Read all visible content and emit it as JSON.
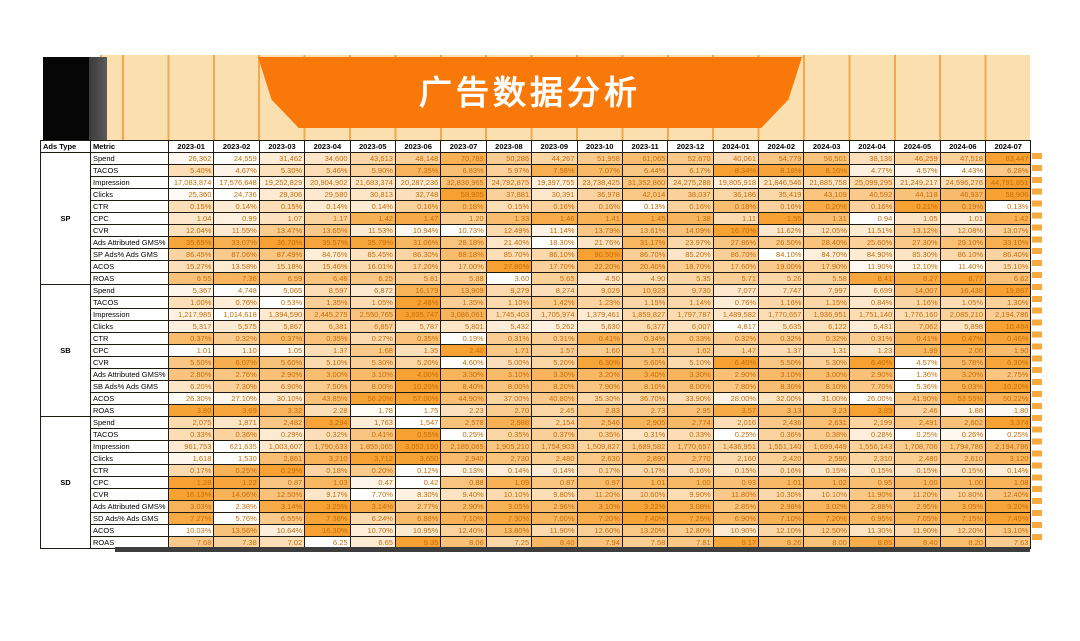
{
  "title": "广告数据分析",
  "colors": {
    "banner": "#f8790a",
    "heat_min": "#ffffff",
    "heat_max": "#f6a132",
    "cell_text": "#c96e07",
    "stripe_bg": "#fcdfae",
    "stripe_line": "#f2a94e"
  },
  "table": {
    "ads_type_header": "Ads Type",
    "metric_header": "Metric",
    "columns": [
      "2023-01",
      "2023-02",
      "2023-03",
      "2023-04",
      "2023-05",
      "2023-06",
      "2023-07",
      "2023-08",
      "2023-09",
      "2023-10",
      "2023-11",
      "2023-12",
      "2024-01",
      "2024-02",
      "2024-03",
      "2024-04",
      "2024-05",
      "2024-06",
      "2024-07"
    ],
    "sections": [
      {
        "ads_type": "SP",
        "metrics": [
          {
            "label": "Spend",
            "format": "int",
            "values": [
              26362,
              24559,
              31462,
              34600,
              43613,
              48148,
              70789,
              50286,
              44267,
              51958,
              61065,
              52670,
              40061,
              54779,
              56501,
              38136,
              46259,
              47518,
              83447
            ]
          },
          {
            "label": "TACOS",
            "format": "pct",
            "values": [
              5.4,
              4.67,
              5.3,
              5.46,
              5.9,
              7.35,
              6.83,
              5.97,
              7.58,
              7.07,
              6.44,
              6.17,
              8.34,
              8.18,
              8.16,
              4.77,
              4.57,
              4.43,
              6.28
            ]
          },
          {
            "label": "Impression",
            "format": "int",
            "values": [
              17083874,
              17576648,
              19252829,
              20904902,
              21683374,
              20287236,
              32836965,
              24792875,
              19397755,
              23738425,
              31352860,
              24275288,
              19805918,
              21846546,
              21885758,
              25099295,
              21249217,
              24596276,
              44791851
            ]
          },
          {
            "label": "Clicks",
            "format": "int",
            "values": [
              25360,
              24736,
              29306,
              29580,
              30813,
              32748,
              58905,
              37881,
              30391,
              36978,
              42014,
              38037,
              36186,
              35419,
              43109,
              40592,
              44118,
              46937,
              58906
            ]
          },
          {
            "label": "CTR",
            "format": "pct",
            "values": [
              0.15,
              0.14,
              0.15,
              0.14,
              0.14,
              0.16,
              0.18,
              0.15,
              0.16,
              0.16,
              0.13,
              0.16,
              0.18,
              0.16,
              0.2,
              0.16,
              0.21,
              0.19,
              0.13
            ]
          },
          {
            "label": "CPC",
            "format": "dec",
            "values": [
              1.04,
              0.99,
              1.07,
              1.17,
              1.42,
              1.47,
              1.2,
              1.33,
              1.46,
              1.41,
              1.45,
              1.38,
              1.11,
              1.55,
              1.31,
              0.94,
              1.05,
              1.01,
              1.42
            ]
          },
          {
            "label": "CVR",
            "format": "pct",
            "values": [
              12.04,
              11.55,
              13.47,
              13.65,
              11.53,
              10.94,
              10.73,
              12.49,
              11.14,
              13.79,
              13.61,
              14.09,
              16.7,
              11.62,
              12.05,
              11.51,
              13.12,
              12.08,
              13.07
            ]
          },
          {
            "label": "Ads Attributed GMS%",
            "format": "pct",
            "values": [
              35.65,
              33.07,
              36.7,
              35.57,
              35.79,
              31.06,
              28.18,
              21.4,
              18.3,
              21.76,
              31.17,
              23.97,
              27.86,
              26.5,
              28.4,
              25.6,
              27.3,
              29.1,
              33.1
            ]
          },
          {
            "label": "SP Ads% Ads GMS",
            "format": "pct",
            "values": [
              86.45,
              87.06,
              87.49,
              84.76,
              85.45,
              86.3,
              88.18,
              85.7,
              86.1,
              90.5,
              86.7,
              85.2,
              86.7,
              84.1,
              84.7,
              84.9,
              85.3,
              86.1,
              86.4
            ]
          },
          {
            "label": "ACOS",
            "format": "pct",
            "values": [
              15.27,
              13.58,
              15.18,
              15.46,
              16.01,
              17.2,
              17.0,
              27.8,
              17.7,
              22.2,
              20.4,
              18.7,
              17.6,
              19.0,
              17.9,
              11.9,
              12.1,
              11.4,
              15.1
            ]
          },
          {
            "label": "ROAS",
            "format": "dec",
            "values": [
              6.55,
              7.36,
              6.59,
              6.46,
              6.25,
              5.81,
              5.88,
              3.6,
              5.65,
              4.5,
              4.9,
              5.35,
              5.71,
              5.26,
              5.58,
              8.41,
              8.27,
              8.77,
              6.62
            ]
          }
        ]
      },
      {
        "ads_type": "SB",
        "metrics": [
          {
            "label": "Spend",
            "format": "int",
            "values": [
              5367,
              4748,
              5065,
              8597,
              6872,
              16179,
              13909,
              9279,
              8274,
              9029,
              10923,
              9730,
              7077,
              7747,
              7997,
              6699,
              14007,
              16438,
              19867
            ]
          },
          {
            "label": "TACOS",
            "format": "pct",
            "values": [
              1.0,
              0.76,
              0.53,
              1.35,
              1.05,
              2.48,
              1.35,
              1.1,
              1.42,
              1.23,
              1.15,
              1.14,
              0.76,
              1.16,
              1.15,
              0.84,
              1.16,
              1.05,
              1.3
            ]
          },
          {
            "label": "Impression",
            "format": "int",
            "values": [
              1217985,
              1014618,
              1394590,
              2445275,
              2550765,
              3835747,
              3086061,
              1745403,
              1705974,
              1379461,
              1859827,
              1797787,
              1489582,
              1770657,
              1936951,
              1751140,
              1776160,
              2085210,
              2194786
            ]
          },
          {
            "label": "Clicks",
            "format": "int",
            "values": [
              5317,
              5575,
              5867,
              6381,
              6857,
              5787,
              5801,
              5432,
              5262,
              5630,
              6377,
              6007,
              4817,
              5635,
              6122,
              5431,
              7062,
              5898,
              10484
            ]
          },
          {
            "label": "CTR",
            "format": "pct",
            "values": [
              0.37,
              0.32,
              0.37,
              0.35,
              0.27,
              0.35,
              0.19,
              0.31,
              0.31,
              0.41,
              0.34,
              0.33,
              0.32,
              0.32,
              0.32,
              0.31,
              0.41,
              0.47,
              0.46
            ]
          },
          {
            "label": "CPC",
            "format": "dec",
            "values": [
              1.01,
              1.1,
              1.05,
              1.37,
              1.68,
              1.35,
              2.4,
              1.71,
              1.57,
              1.6,
              1.71,
              1.62,
              1.47,
              1.37,
              1.31,
              1.23,
              1.99,
              2.06,
              1.9
            ]
          },
          {
            "label": "CVR",
            "format": "pct",
            "values": [
              5.5,
              6.07,
              5.6,
              5.1,
              5.3,
              5.2,
              4.6,
              5.0,
              5.2,
              6.3,
              5.6,
              5.1,
              6.4,
              5.5,
              5.3,
              6.4,
              4.57,
              5.78,
              6.3
            ]
          },
          {
            "label": "Ads Attributed GMS%",
            "format": "pct",
            "values": [
              2.8,
              2.76,
              2.9,
              3.0,
              3.1,
              4.0,
              3.3,
              3.1,
              3.3,
              3.2,
              3.4,
              3.3,
              2.9,
              3.1,
              3.0,
              2.9,
              1.36,
              3.2,
              2.75
            ]
          },
          {
            "label": "SB Ads% Ads GMS",
            "format": "pct",
            "values": [
              6.2,
              7.3,
              6.9,
              7.5,
              8.0,
              10.2,
              8.4,
              8.0,
              8.2,
              7.9,
              8.1,
              8.0,
              7.8,
              8.3,
              8.1,
              7.7,
              5.36,
              9.03,
              10.2
            ]
          },
          {
            "label": "ACOS",
            "format": "pct",
            "values": [
              26.3,
              27.1,
              30.1,
              43.85,
              56.2,
              57.0,
              44.9,
              37.0,
              40.8,
              35.3,
              36.7,
              33.9,
              28.0,
              32.0,
              31.0,
              26.0,
              41.9,
              53.55,
              50.22
            ]
          },
          {
            "label": "ROAS",
            "format": "dec",
            "values": [
              3.8,
              3.69,
              3.32,
              2.28,
              1.78,
              1.75,
              2.23,
              2.7,
              2.45,
              2.83,
              2.73,
              2.95,
              3.57,
              3.13,
              3.23,
              3.85,
              2.46,
              1.88,
              1.8
            ]
          }
        ]
      },
      {
        "ads_type": "SD",
        "metrics": [
          {
            "label": "Spend",
            "format": "int",
            "values": [
              2075,
              1871,
              2482,
              3294,
              1763,
              1547,
              2578,
              2988,
              2154,
              2546,
              2905,
              2774,
              2016,
              2436,
              2631,
              2199,
              2491,
              2602,
              3374
            ]
          },
          {
            "label": "TACOS",
            "format": "pct",
            "values": [
              0.33,
              0.36,
              0.29,
              0.32,
              0.41,
              0.55,
              0.25,
              0.35,
              0.37,
              0.35,
              0.31,
              0.33,
              0.25,
              0.36,
              0.38,
              0.28,
              0.25,
              0.26,
              0.25
            ]
          },
          {
            "label": "Impression",
            "format": "int",
            "values": [
              961753,
              621635,
              1003607,
              1790633,
              1855065,
              3052190,
              2185065,
              1905210,
              1754903,
              1509827,
              1689582,
              1770657,
              1436951,
              1551140,
              1699449,
              1556143,
              1708706,
              1794786,
              2194786
            ]
          },
          {
            "label": "Clicks",
            "format": "int",
            "values": [
              1618,
              1530,
              2861,
              3210,
              3712,
              3650,
              2940,
              2730,
              2480,
              2630,
              2890,
              2770,
              2160,
              2420,
              2590,
              2310,
              2480,
              2610,
              3120
            ]
          },
          {
            "label": "CTR",
            "format": "pct",
            "values": [
              0.17,
              0.25,
              0.29,
              0.18,
              0.2,
              0.12,
              0.13,
              0.14,
              0.14,
              0.17,
              0.17,
              0.16,
              0.15,
              0.16,
              0.15,
              0.15,
              0.15,
              0.15,
              0.14
            ]
          },
          {
            "label": "CPC",
            "format": "dec",
            "values": [
              1.28,
              1.22,
              0.87,
              1.03,
              0.47,
              0.42,
              0.88,
              1.09,
              0.87,
              0.97,
              1.01,
              1.0,
              0.93,
              1.01,
              1.02,
              0.95,
              1.0,
              1.0,
              1.08
            ]
          },
          {
            "label": "CVR",
            "format": "pct",
            "values": [
              16.13,
              14.06,
              12.5,
              9.17,
              7.7,
              8.3,
              9.4,
              10.1,
              9.8,
              11.2,
              10.6,
              9.9,
              11.8,
              10.3,
              10.1,
              11.9,
              11.2,
              10.8,
              12.4
            ]
          },
          {
            "label": "Ads Attributed GMS%",
            "format": "pct",
            "values": [
              3.03,
              2.38,
              3.14,
              3.25,
              3.14,
              2.77,
              2.9,
              3.05,
              2.96,
              3.1,
              3.22,
              3.08,
              2.85,
              2.98,
              3.02,
              2.88,
              2.95,
              3.05,
              3.2
            ]
          },
          {
            "label": "SD Ads% Ads GMS",
            "format": "pct",
            "values": [
              7.27,
              5.76,
              6.55,
              7.38,
              6.24,
              6.88,
              7.1,
              7.3,
              7.0,
              7.2,
              7.4,
              7.25,
              6.9,
              7.1,
              7.2,
              6.95,
              7.05,
              7.15,
              7.45
            ]
          },
          {
            "label": "ACOS",
            "format": "pct",
            "values": [
              10.03,
              13.56,
              10.64,
              16.3,
              10.7,
              10.95,
              12.4,
              13.8,
              11.9,
              12.6,
              13.2,
              12.8,
              10.9,
              12.1,
              12.5,
              11.3,
              11.9,
              12.2,
              13.1
            ]
          },
          {
            "label": "ROAS",
            "format": "dec",
            "values": [
              7.68,
              7.38,
              7.02,
              6.25,
              6.65,
              9.35,
              8.06,
              7.25,
              8.4,
              7.94,
              7.58,
              7.81,
              9.17,
              8.26,
              8.0,
              8.85,
              8.4,
              8.2,
              7.63
            ]
          }
        ]
      }
    ]
  }
}
